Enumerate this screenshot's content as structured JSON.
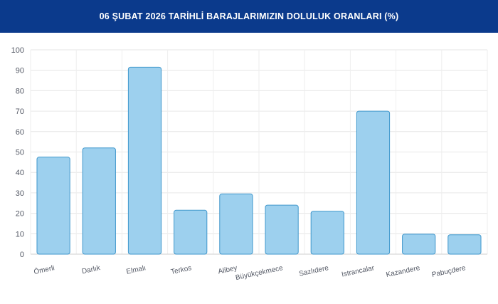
{
  "header": {
    "title": "06 ŞUBAT 2026 TARİHLİ BARAJLARIMIZIN DOLULUK ORANLARI (%)"
  },
  "colors": {
    "header_bg": "#0b3a8c",
    "bar_fill": "#9dd0ee",
    "bar_stroke": "#3f97cc"
  },
  "chart_data": {
    "type": "bar",
    "title": "06 ŞUBAT 2026 TARİHLİ BARAJLARIMIZIN DOLULUK ORANLARI (%)",
    "categories": [
      "Ömerli",
      "Darlık",
      "Elmalı",
      "Terkos",
      "Alibey",
      "Büyükçekmece",
      "Sazlıdere",
      "Istrancalar",
      "Kazandere",
      "Pabuçdere"
    ],
    "values": [
      47.5,
      52,
      91.5,
      21.5,
      29.5,
      24,
      21,
      70,
      9.8,
      9.5
    ],
    "ylim": [
      0,
      100
    ],
    "yticks": [
      0,
      10,
      20,
      30,
      40,
      50,
      60,
      70,
      80,
      90,
      100
    ],
    "grid": true,
    "legend": "none"
  }
}
